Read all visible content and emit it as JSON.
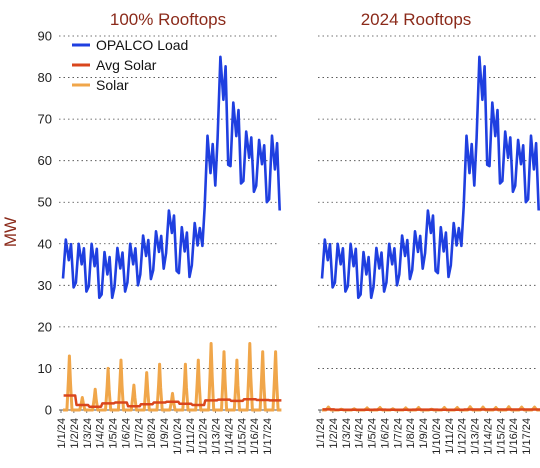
{
  "chart_data": {
    "type": "line",
    "ylabel": "MW",
    "ylim": [
      0,
      90
    ],
    "yticks": [
      0,
      10,
      20,
      30,
      40,
      50,
      60,
      70,
      80,
      90
    ],
    "grid": "horizontal dotted",
    "legend_placement": "top-left",
    "x_tick_labels": [
      "1/1/24",
      "1/2/24",
      "1/3/24",
      "1/4/24",
      "1/5/24",
      "1/6/24",
      "1/7/24",
      "1/8/24",
      "1/9/24",
      "1/10/24",
      "1/11/24",
      "1/12/24",
      "1/13/24",
      "1/14/24",
      "1/15/24",
      "1/16/24",
      "1/17/24"
    ],
    "colors": {
      "OPALCO Load": "#1f3fe0",
      "Avg Solar": "#d9461c",
      "Solar": "#f0a64a"
    },
    "series_names": [
      "OPALCO Load",
      "Avg Solar",
      "Solar"
    ],
    "load_daily": {
      "note_days": [
        1,
        17
      ],
      "peak": [
        41,
        40,
        40,
        38,
        39,
        40,
        42,
        43,
        48,
        44,
        45,
        66,
        85,
        74,
        67,
        65,
        66
      ],
      "trough": [
        30,
        29,
        28,
        26,
        28,
        29,
        31,
        32,
        36,
        31,
        33,
        46,
        62,
        56,
        53,
        52,
        48
      ]
    },
    "charts": [
      {
        "title": "100% Rooftops",
        "series": [
          {
            "name": "OPALCO Load",
            "daily_peak": [
              41,
              40,
              40,
              38,
              39,
              40,
              42,
              43,
              48,
              44,
              45,
              66,
              85,
              74,
              67,
              65,
              66
            ],
            "daily_min": [
              30,
              29,
              28,
              26,
              28,
              29,
              31,
              32,
              36,
              31,
              33,
              46,
              62,
              56,
              53,
              52,
              48
            ]
          },
          {
            "name": "Avg Solar",
            "daily_avg": [
              3.5,
              1.2,
              0.8,
              1.6,
              1.8,
              0.9,
              1.4,
              1.8,
              2.0,
              1.5,
              1.2,
              2.3,
              2.5,
              2.2,
              2.6,
              2.4,
              2.3
            ]
          },
          {
            "name": "Solar",
            "daily_peak": [
              13,
              3,
              5,
              10,
              12,
              6,
              9,
              11,
              4,
              11,
              12,
              16,
              14,
              12,
              16,
              14,
              14
            ]
          }
        ]
      },
      {
        "title": "2024 Rooftops",
        "series": [
          {
            "name": "OPALCO Load",
            "daily_peak": [
              41,
              40,
              40,
              38,
              39,
              40,
              42,
              43,
              48,
              44,
              45,
              66,
              85,
              74,
              67,
              65,
              66
            ],
            "daily_min": [
              30,
              29,
              28,
              26,
              28,
              29,
              31,
              32,
              36,
              31,
              33,
              46,
              62,
              56,
              53,
              52,
              48
            ]
          },
          {
            "name": "Avg Solar",
            "daily_avg": [
              0.15,
              0.05,
              0.04,
              0.08,
              0.09,
              0.05,
              0.07,
              0.09,
              0.1,
              0.08,
              0.06,
              0.12,
              0.13,
              0.11,
              0.13,
              0.12,
              0.12
            ]
          },
          {
            "name": "Solar",
            "daily_peak": [
              0.7,
              0.2,
              0.3,
              0.5,
              0.6,
              0.3,
              0.5,
              0.6,
              0.2,
              0.6,
              0.6,
              0.8,
              0.7,
              0.6,
              0.8,
              0.7,
              0.7
            ]
          }
        ]
      }
    ]
  }
}
